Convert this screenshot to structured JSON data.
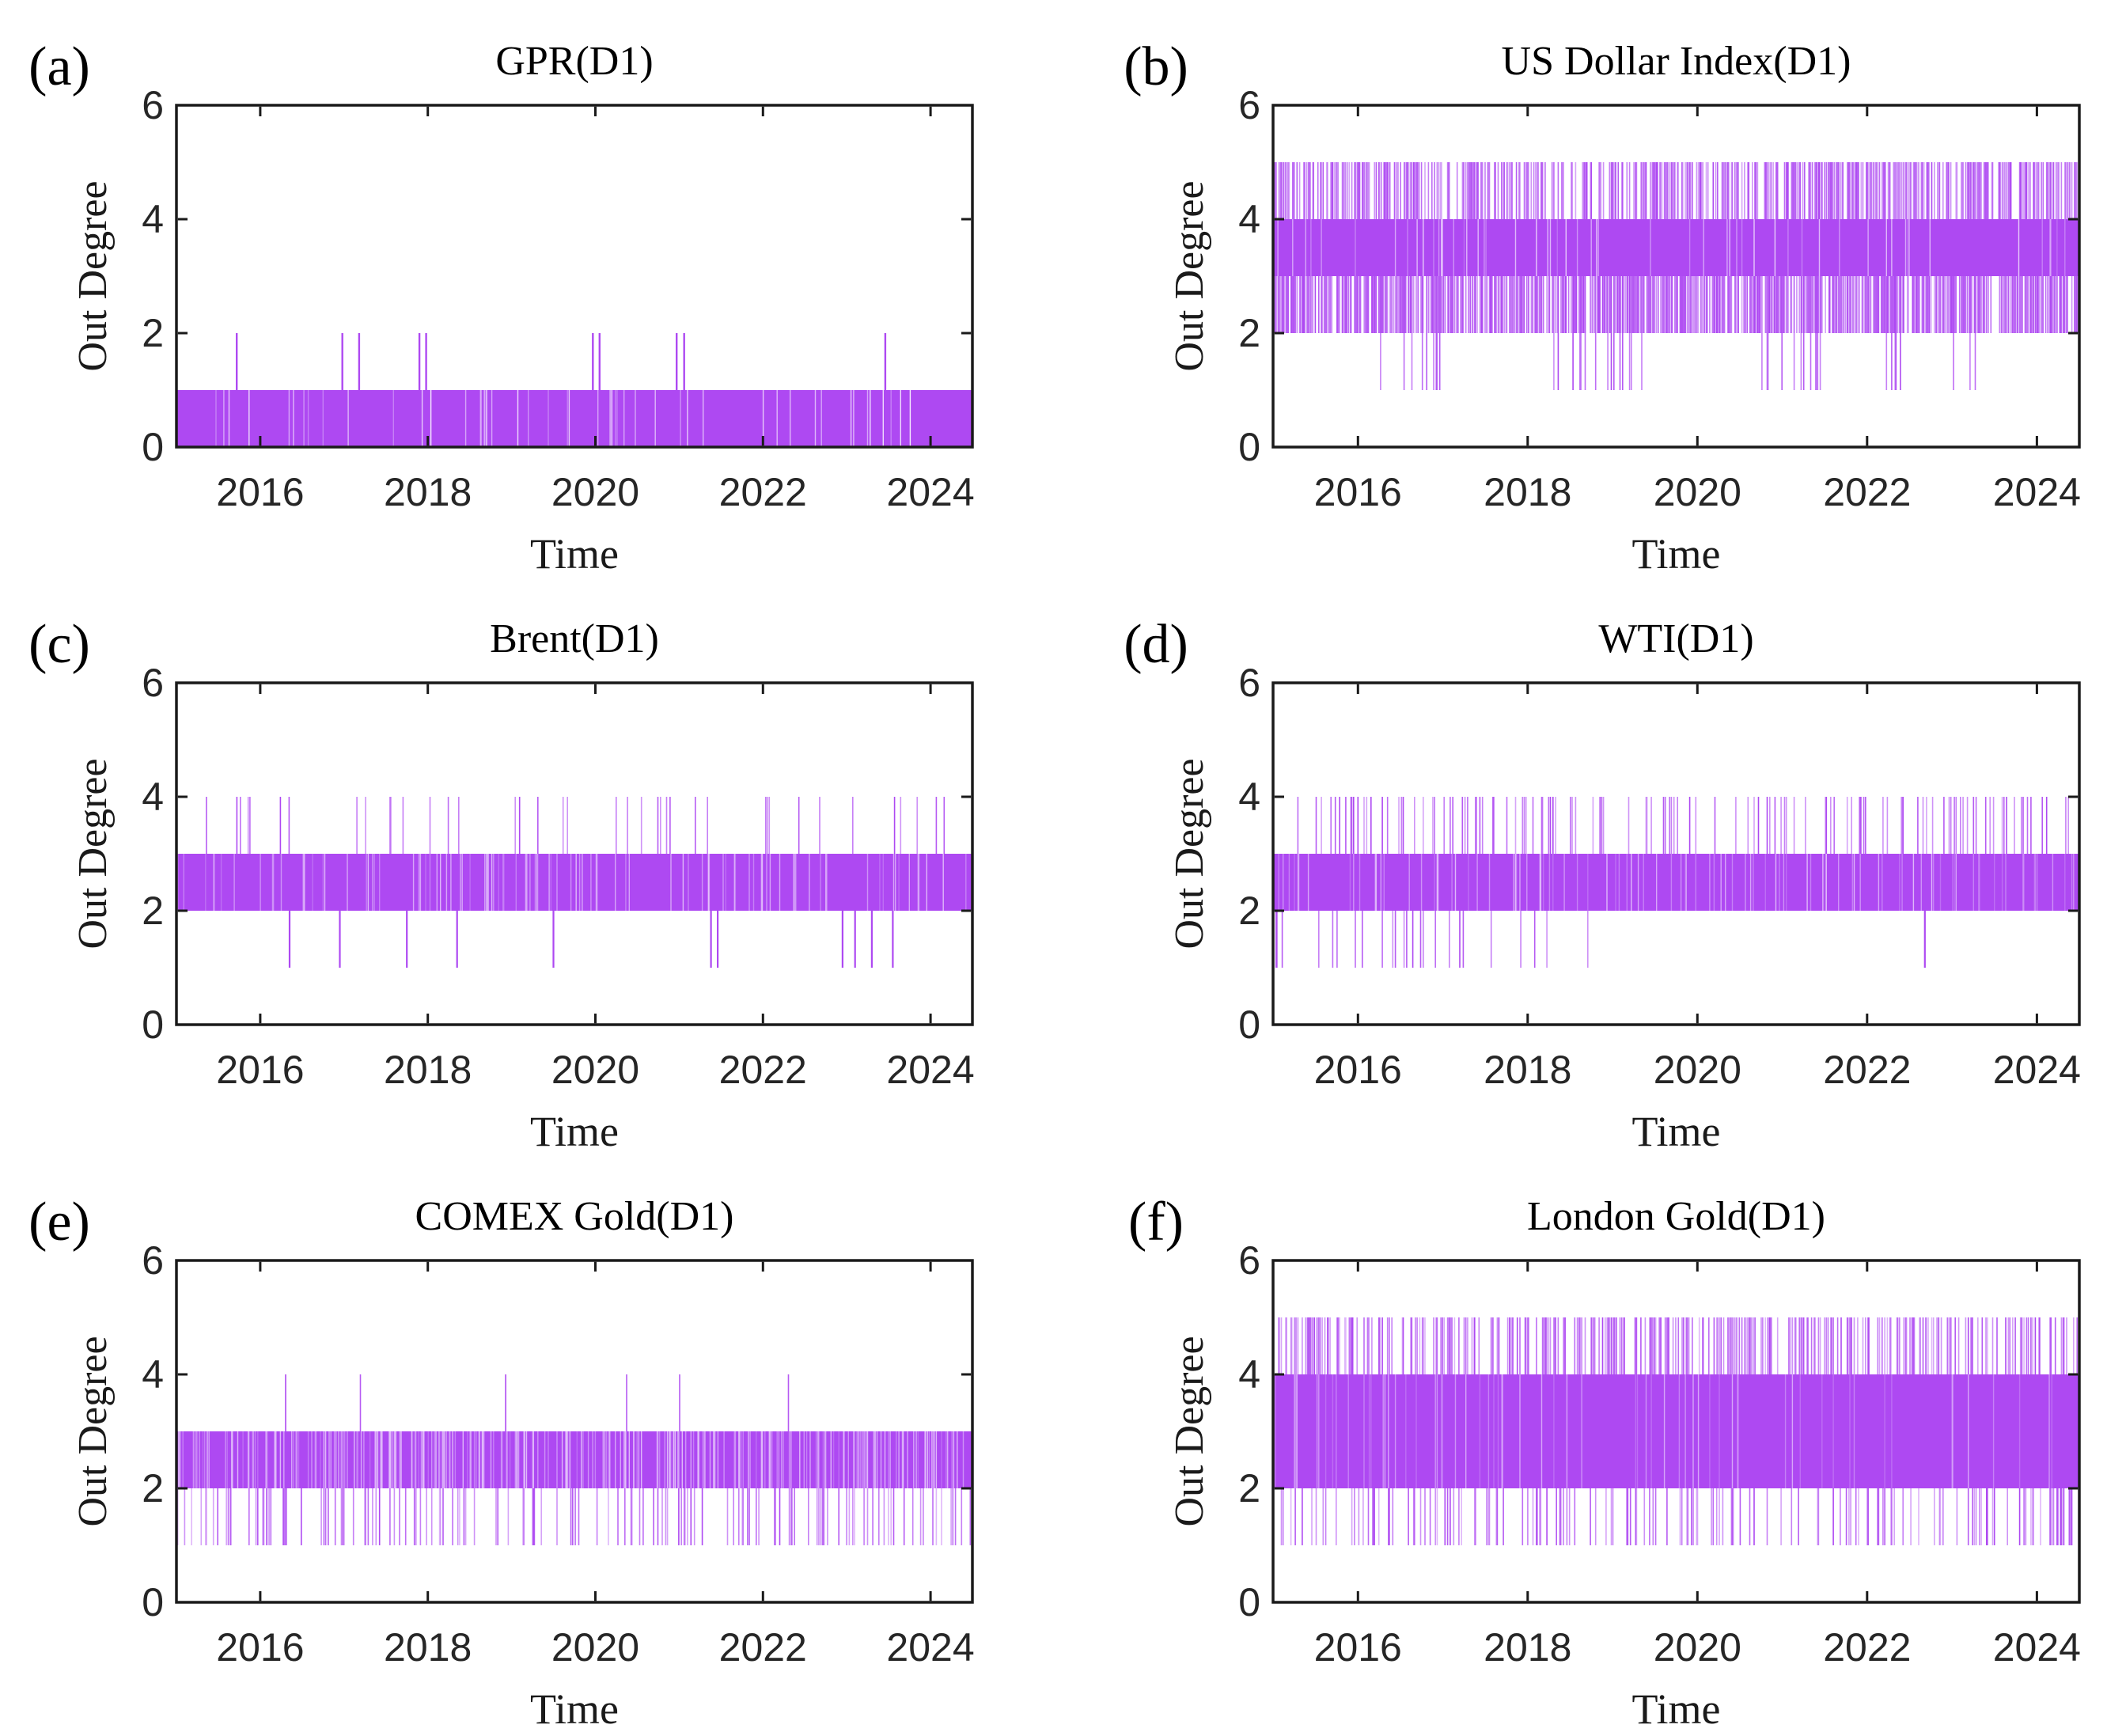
{
  "figure": {
    "background": "#ffffff",
    "axis_color": "#1a1a1a",
    "tick_text_color": "#262626",
    "accent_purple": "#AE49F2"
  },
  "chart_data": [
    {
      "panel_index": 0,
      "letter": "(a)",
      "type": "line",
      "title": "GPR(D1)",
      "xlabel": "Time",
      "ylabel": "Out Degree",
      "xlim": [
        2015.0,
        2024.5
      ],
      "ylim": [
        0,
        6
      ],
      "xticks": [
        2016,
        2018,
        2020,
        2022,
        2024
      ],
      "yticks": [
        0,
        2,
        4,
        6
      ],
      "grid": false,
      "legend": null,
      "line_color": "#AE49F2",
      "summary": "Daily out-degree stays at 1 for almost the whole 2015-2024.5 sample (solid band 0-1), with isolated spikes to 2.",
      "base_band": [
        0,
        1
      ],
      "spikes_up": {
        "level": 2,
        "years": [
          2015.72,
          2016.98,
          2017.18,
          2017.9,
          2017.98,
          2019.97,
          2020.05,
          2020.97,
          2021.06,
          2023.46
        ]
      },
      "spikes_down": null,
      "render": {
        "seed": 11,
        "gaps": {
          "density": 0.055,
          "opacity": [
            0.25,
            0.9
          ]
        },
        "strokes": [
          {
            "from": 1,
            "to": 2,
            "years": [
              2015.72,
              2016.98,
              2017.18,
              2017.9,
              2017.98,
              2019.97,
              2020.05,
              2020.97,
              2021.06,
              2023.46
            ],
            "width": 2.4
          }
        ]
      }
    },
    {
      "panel_index": 1,
      "letter": "(b)",
      "type": "line",
      "title": "US Dollar Index(D1)",
      "xlabel": "Time",
      "ylabel": "Out Degree",
      "xlim": [
        2015.0,
        2024.5
      ],
      "ylim": [
        0,
        6
      ],
      "xticks": [
        2016,
        2018,
        2020,
        2022,
        2024
      ],
      "yticks": [
        0,
        2,
        4,
        6
      ],
      "grid": false,
      "legend": null,
      "line_color": "#AE49F2",
      "summary": "Out-degree oscillates mostly between 2 and 5: solid band 3-4, very frequent excursions to 5 and to 2, occasional dips to 1 in clusters (2016.3-2017, 2018.3-2019.3, 2020.8-2021.5, 2022.2-2022.4, 2023.0-2023.3).",
      "base_band": [
        3,
        4
      ],
      "spikes_up": {
        "level": 5,
        "approx_fraction_of_days": 0.5
      },
      "spikes_down": {
        "levels": [
          2,
          1
        ],
        "fraction_to_2": 0.62,
        "dips_to_1_in_clusters": true
      },
      "render": {
        "seed": 22,
        "gaps": {
          "density": 0.05,
          "opacity": [
            0.2,
            0.7
          ]
        },
        "strokes": [
          {
            "from": 4,
            "to": 5,
            "density": 0.5,
            "opacity": [
              0.45,
              1
            ]
          },
          {
            "from": 2,
            "to": 3,
            "density": 0.62,
            "opacity": [
              0.5,
              1
            ]
          },
          {
            "from": 1,
            "to": 3,
            "density": 0.12,
            "opacity": [
              0.6,
              1
            ],
            "year_ranges": [
              [
                2016.25,
                2017.05
              ],
              [
                2018.3,
                2019.35
              ],
              [
                2020.75,
                2021.5
              ],
              [
                2022.2,
                2022.45
              ],
              [
                2022.95,
                2023.35
              ]
            ]
          }
        ]
      }
    },
    {
      "panel_index": 2,
      "letter": "(c)",
      "type": "line",
      "title": "Brent(D1)",
      "xlabel": "Time",
      "ylabel": "Out Degree",
      "xlim": [
        2015.0,
        2024.5
      ],
      "ylim": [
        0,
        6
      ],
      "xticks": [
        2016,
        2018,
        2020,
        2022,
        2024
      ],
      "yticks": [
        0,
        2,
        4,
        6
      ],
      "grid": false,
      "legend": null,
      "line_color": "#AE49F2",
      "summary": "Solid band between 2 and 3 across the full sample; roughly 40-50 scattered spikes to 4; about a dozen dips to 1.",
      "base_band": [
        2,
        3
      ],
      "spikes_up": {
        "level": 4,
        "approx_count": 45
      },
      "spikes_down": {
        "level": 1,
        "years": [
          2016.35,
          2016.95,
          2017.75,
          2018.35,
          2019.5,
          2021.38,
          2021.46,
          2022.95,
          2023.1,
          2023.3,
          2023.55
        ]
      },
      "render": {
        "seed": 33,
        "gaps": {
          "density": 0.1,
          "opacity": [
            0.15,
            0.6
          ]
        },
        "strokes": [
          {
            "from": 3,
            "to": 4,
            "density": 0.045,
            "opacity": [
              0.55,
              1
            ]
          },
          {
            "from": 1,
            "to": 2,
            "years": [
              2016.35,
              2016.95,
              2017.75,
              2018.35,
              2019.5,
              2021.38,
              2021.46,
              2022.95,
              2023.1,
              2023.3,
              2023.55
            ],
            "width": 2.2
          }
        ]
      }
    },
    {
      "panel_index": 3,
      "letter": "(d)",
      "type": "line",
      "title": "WTI(D1)",
      "xlabel": "Time",
      "ylabel": "Out Degree",
      "xlim": [
        2015.0,
        2024.5
      ],
      "ylim": [
        0,
        6
      ],
      "xticks": [
        2016,
        2018,
        2020,
        2022,
        2024
      ],
      "yticks": [
        0,
        2,
        4,
        6
      ],
      "grid": false,
      "legend": null,
      "line_color": "#AE49F2",
      "summary": "Solid band 2-3 with frequent spikes to 4 throughout; dips to 1 concentrated in 2015-2019.5 plus one near 2022.7.",
      "base_band": [
        2,
        3
      ],
      "spikes_up": {
        "level": 4,
        "approx_fraction_of_days": 0.13
      },
      "spikes_down": {
        "level": 1,
        "mostly_before": 2019.6,
        "extra_years": [
          2022.68
        ]
      },
      "render": {
        "seed": 44,
        "gaps": {
          "density": 0.11,
          "opacity": [
            0.15,
            0.6
          ]
        },
        "strokes": [
          {
            "from": 3,
            "to": 4,
            "density": 0.125,
            "opacity": [
              0.5,
              1
            ]
          },
          {
            "from": 1,
            "to": 2,
            "density": 0.05,
            "opacity": [
              0.6,
              1
            ],
            "year_ranges": [
              [
                2015.0,
                2019.6
              ]
            ],
            "extra_years": [
              2022.68
            ]
          }
        ]
      }
    },
    {
      "panel_index": 4,
      "letter": "(e)",
      "type": "line",
      "title": "COMEX Gold(D1)",
      "xlabel": "Time",
      "ylabel": "Out Degree",
      "xlim": [
        2015.0,
        2024.5
      ],
      "ylim": [
        0,
        6
      ],
      "xticks": [
        2016,
        2018,
        2020,
        2022,
        2024
      ],
      "yticks": [
        0,
        2,
        4,
        6
      ],
      "grid": false,
      "legend": null,
      "line_color": "#AE49F2",
      "summary": "Striped band 2-3 with many dips to 1 across the whole period; rare spikes to 4 (about one per year).",
      "base_band": [
        2,
        3
      ],
      "spikes_up": {
        "level": 4,
        "approx_count": 12
      },
      "spikes_down": {
        "level": 1,
        "approx_fraction_of_days": 0.16
      },
      "render": {
        "seed": 55,
        "gaps": {
          "density": 0.28,
          "opacity": [
            0.2,
            0.65
          ]
        },
        "strokes": [
          {
            "from": 3,
            "to": 4,
            "density": 0.013,
            "opacity": [
              0.85,
              1
            ]
          },
          {
            "from": 1,
            "to": 2,
            "density": 0.16,
            "opacity": [
              0.4,
              1
            ]
          }
        ]
      }
    },
    {
      "panel_index": 5,
      "letter": "(f)",
      "type": "line",
      "title": "London Gold(D1)",
      "xlabel": "Time",
      "ylabel": "Out Degree",
      "xlim": [
        2015.0,
        2024.5
      ],
      "ylim": [
        0,
        6
      ],
      "xticks": [
        2016,
        2018,
        2020,
        2022,
        2024
      ],
      "yticks": [
        0,
        2,
        4,
        6
      ],
      "grid": false,
      "legend": null,
      "line_color": "#AE49F2",
      "summary": "Broad solid band 2-4; frequent thin spikes to 5 and dips to 1 throughout the whole 2015-2024.5 window.",
      "base_band": [
        2,
        4
      ],
      "spikes_up": {
        "level": 5,
        "approx_fraction_of_days": 0.34
      },
      "spikes_down": {
        "level": 1,
        "approx_fraction_of_days": 0.15
      },
      "render": {
        "seed": 66,
        "gaps": {
          "density": 0.07,
          "opacity": [
            0.15,
            0.55
          ]
        },
        "strokes": [
          {
            "from": 4,
            "to": 5,
            "density": 0.34,
            "opacity": [
              0.4,
              1
            ]
          },
          {
            "from": 1,
            "to": 2,
            "density": 0.15,
            "opacity": [
              0.4,
              1
            ]
          }
        ]
      }
    }
  ]
}
